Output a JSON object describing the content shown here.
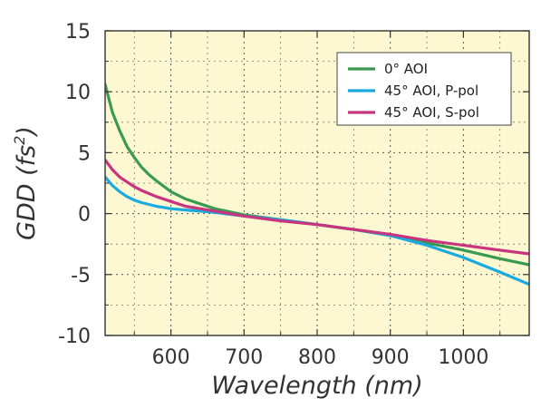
{
  "chart_data": {
    "type": "line",
    "title": "",
    "xlabel": "Wavelength (nm)",
    "ylabel_main": "GDD (fs",
    "ylabel_sup": "2",
    "ylabel_close": ")",
    "xlim": [
      510,
      1090
    ],
    "ylim": [
      -10,
      15
    ],
    "x_ticks": [
      600,
      700,
      800,
      900,
      1000
    ],
    "x_tick_labels": [
      "600",
      "700",
      "800",
      "900",
      "1000"
    ],
    "y_ticks": [
      -10,
      -5,
      0,
      5,
      10,
      15
    ],
    "y_tick_labels": [
      "-10",
      "-5",
      "0",
      "5",
      "10",
      "15"
    ],
    "grid": true,
    "legend_position": "top-right",
    "background_color": "#fdf8d2",
    "series": [
      {
        "name": "0° AOI",
        "color": "#3a9a52",
        "x": [
          510,
          520,
          530,
          540,
          550,
          560,
          570,
          580,
          600,
          620,
          640,
          660,
          700,
          750,
          800,
          850,
          900,
          950,
          1000,
          1050,
          1090
        ],
        "y": [
          10.6,
          8.3,
          6.8,
          5.5,
          4.6,
          3.8,
          3.2,
          2.7,
          1.8,
          1.2,
          0.8,
          0.4,
          -0.1,
          -0.5,
          -0.9,
          -1.3,
          -1.8,
          -2.4,
          -3.0,
          -3.7,
          -4.2
        ]
      },
      {
        "name": "45° AOI, P-pol",
        "color": "#1aaae0",
        "x": [
          510,
          520,
          530,
          540,
          550,
          560,
          580,
          600,
          620,
          640,
          660,
          700,
          750,
          800,
          850,
          900,
          950,
          1000,
          1050,
          1090
        ],
        "y": [
          3.0,
          2.3,
          1.8,
          1.4,
          1.1,
          0.9,
          0.6,
          0.4,
          0.3,
          0.2,
          0.1,
          -0.2,
          -0.5,
          -0.9,
          -1.3,
          -1.8,
          -2.6,
          -3.6,
          -4.8,
          -5.8
        ]
      },
      {
        "name": "45° AOI, S-pol",
        "color": "#c8347e",
        "x": [
          510,
          520,
          530,
          540,
          550,
          560,
          580,
          600,
          620,
          640,
          660,
          700,
          750,
          800,
          850,
          900,
          950,
          1000,
          1050,
          1090
        ],
        "y": [
          4.4,
          3.6,
          3.0,
          2.6,
          2.2,
          1.9,
          1.4,
          1.0,
          0.6,
          0.4,
          0.2,
          -0.2,
          -0.6,
          -0.9,
          -1.3,
          -1.7,
          -2.2,
          -2.6,
          -3.0,
          -3.3
        ]
      }
    ]
  }
}
